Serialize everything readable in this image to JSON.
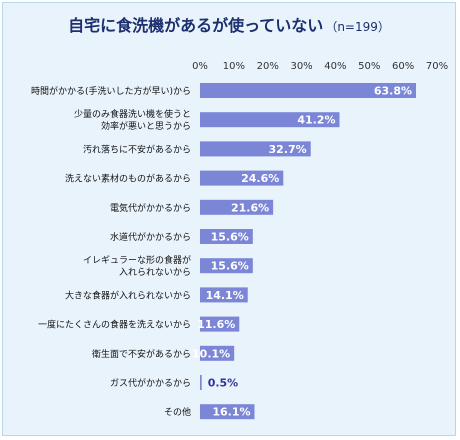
{
  "chart_data": {
    "type": "bar",
    "orientation": "horizontal",
    "title": "自宅に食洗機があるが使っていない",
    "subtitle": "（n=199）",
    "categories": [
      [
        "時間がかかる(手洗いした方が早い)から"
      ],
      [
        "少量のみ食器洗い機を使うと",
        "効率が悪いと思うから"
      ],
      [
        "汚れ落ちに不安があるから"
      ],
      [
        "洗えない素材のものがあるから"
      ],
      [
        "電気代がかかるから"
      ],
      [
        "水道代がかかるから"
      ],
      [
        "イレギュラーな形の食器が",
        "入れられないから"
      ],
      [
        "大きな食器が入れられないから"
      ],
      [
        "一度にたくさんの食器を洗えないから"
      ],
      [
        "衛生面で不安があるから"
      ],
      [
        "ガス代がかかるから"
      ],
      [
        "その他"
      ]
    ],
    "values": [
      63.8,
      41.2,
      32.7,
      24.6,
      21.6,
      15.6,
      15.6,
      14.1,
      11.6,
      10.1,
      0.5,
      16.1
    ],
    "data_labels": [
      "63.8%",
      "41.2%",
      "32.7%",
      "24.6%",
      "21.6%",
      "15.6%",
      "15.6%",
      "14.1%",
      "11.6%",
      "10.1%",
      "0.5%",
      "16.1%"
    ],
    "x_ticks": [
      "0%",
      "10%",
      "20%",
      "30%",
      "40%",
      "50%",
      "60%",
      "70%"
    ],
    "xlim": [
      0,
      70
    ],
    "axis_position": "top",
    "grid": false,
    "colors": {
      "bar": "#7b86d6",
      "label_inside": "#ffffff",
      "label_outside": "#333399",
      "title": "#1c2f6e",
      "background": "#e9f3fb",
      "border": "#b9d7ec"
    }
  }
}
